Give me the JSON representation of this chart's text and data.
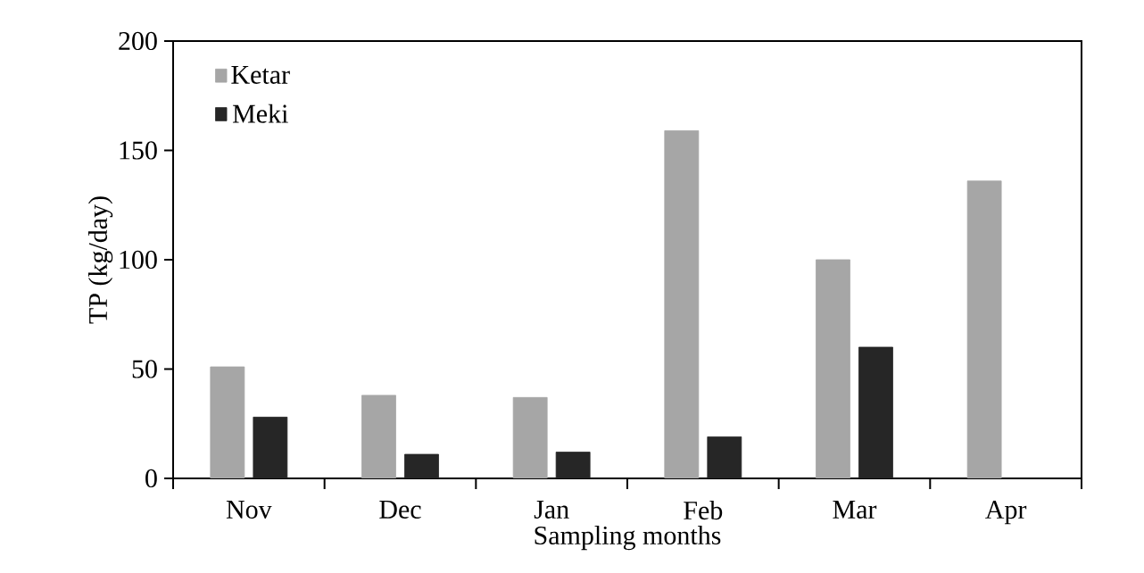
{
  "chart_data": {
    "type": "bar",
    "xlabel": "Sampling months",
    "ylabel": "TP (kg/day)",
    "categories": [
      "Nov",
      "Dec",
      "Jan",
      "Feb",
      "Mar",
      "Apr"
    ],
    "series": [
      {
        "name": "Ketar",
        "color": "#a6a6a6",
        "values": [
          51,
          38,
          37,
          159,
          100,
          136
        ]
      },
      {
        "name": "Meki",
        "color": "#262626",
        "values": [
          28,
          11,
          12,
          19,
          60,
          null
        ]
      }
    ],
    "ylim": [
      0,
      200
    ],
    "yticks": [
      0,
      50,
      100,
      150,
      200
    ],
    "legend": "top left",
    "grid": false
  }
}
